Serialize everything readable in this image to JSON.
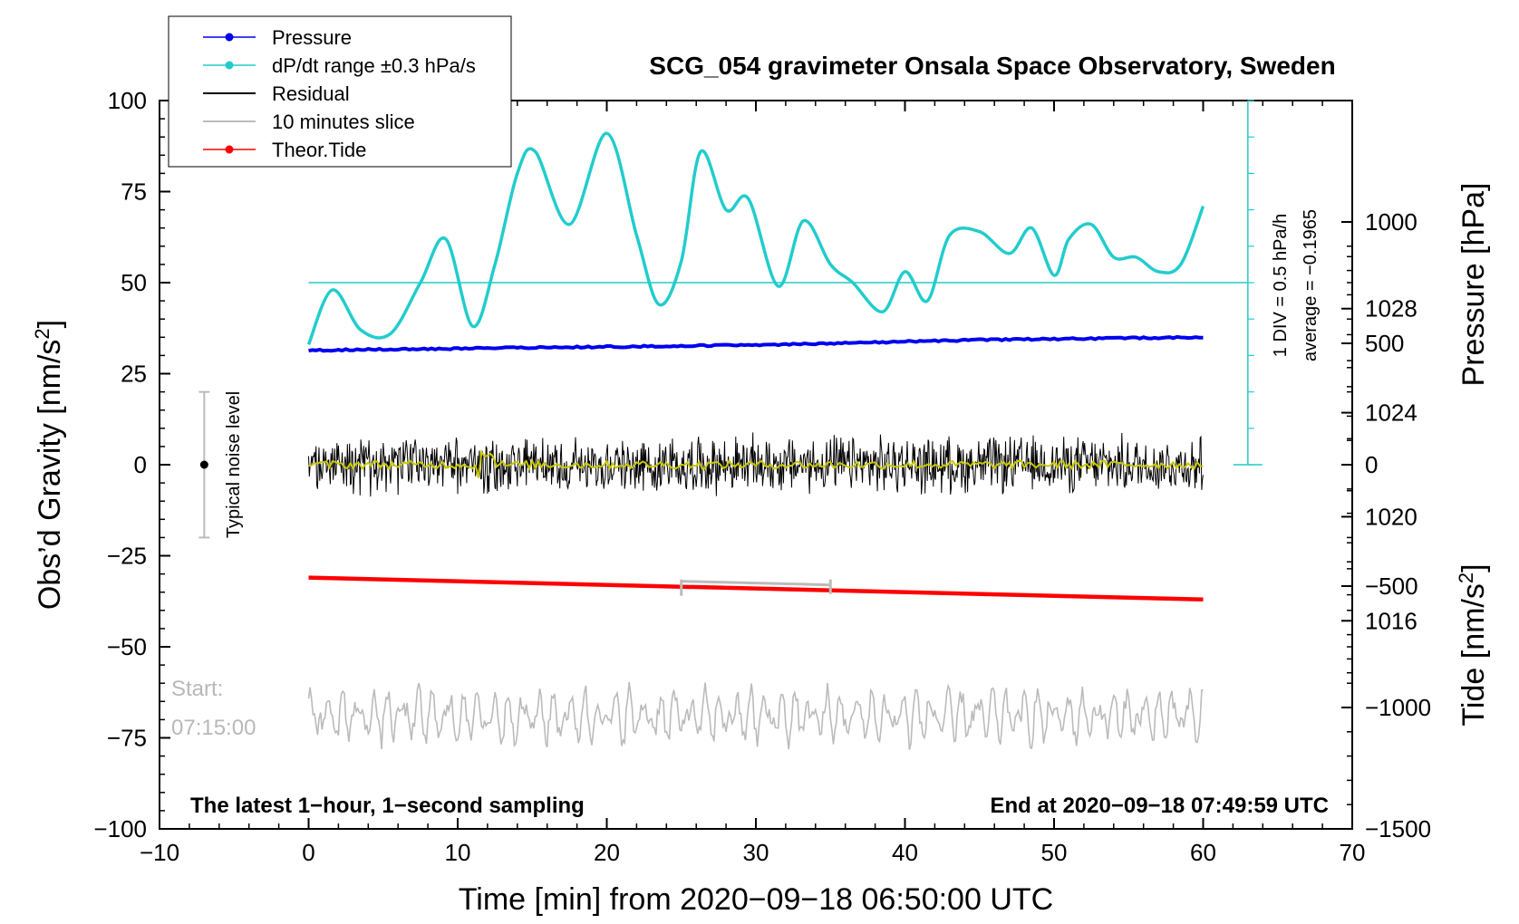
{
  "chart_data": {
    "type": "line",
    "title": "SCG_054 gravimeter Onsala Space Observatory, Sweden",
    "xlabel": "Time [min] from 2020−09−18 06:50:00 UTC",
    "ylabel_left": "Obs’d Gravity [nm/s²]",
    "ylabel_left_parts": {
      "main": "Obs’d Gravity [nm/s",
      "sup": "2",
      "end": "]"
    },
    "ylabel_pressure": "Pressure [hPa]",
    "ylabel_tide": "Tide [nm/s²]",
    "ylabel_tide_parts": {
      "main": "Tide [nm/s",
      "sup": "2",
      "end": "]"
    },
    "xlim": [
      -10,
      70
    ],
    "ylim_left": [
      -100,
      100
    ],
    "ylim_pressure": [
      1008,
      1036
    ],
    "ylim_tide": [
      -1500,
      1500
    ],
    "x_ticks": [
      -10,
      0,
      10,
      20,
      30,
      40,
      50,
      60,
      70
    ],
    "x_tick_labels": [
      "−10",
      "0",
      "10",
      "20",
      "30",
      "40",
      "50",
      "60",
      "70"
    ],
    "y_ticks_left": [
      100,
      75,
      50,
      25,
      0,
      -25,
      -50,
      -75,
      -100
    ],
    "y_tick_labels_left": [
      "100",
      "75",
      "50",
      "25",
      "0",
      "−25",
      "−50",
      "−75",
      "−100"
    ],
    "pressure_ticks": [
      1016,
      1020,
      1024,
      1028
    ],
    "pressure_tick_labels": [
      "1016",
      "1020",
      "1024",
      "1028"
    ],
    "tide_ticks": [
      1000,
      500,
      0,
      -500,
      -1000,
      -1500
    ],
    "tide_tick_labels": [
      "1000",
      "500",
      "0",
      "−500",
      "−1000",
      "−1500"
    ],
    "legend": [
      {
        "label": "Pressure",
        "color": "#0000ee",
        "marker": true
      },
      {
        "label": "dP/dt range ±0.3 hPa/s",
        "color": "#22cccc",
        "marker": true
      },
      {
        "label": "Residual",
        "color": "#000000",
        "marker": false
      },
      {
        "label": "10 minutes slice",
        "color": "#bbbbbb",
        "marker": false
      },
      {
        "label": "Theor.Tide",
        "color": "#ff0000",
        "marker": true
      }
    ],
    "pressure_hpa": {
      "x": [
        0,
        15,
        30,
        45,
        60
      ],
      "values": [
        1026.4,
        1026.5,
        1026.6,
        1026.8,
        1026.9
      ],
      "color": "#0000ee"
    },
    "dpdt": {
      "x": [
        0,
        1.6,
        3.5,
        5.5,
        7.5,
        9.2,
        11,
        12.5,
        14,
        15.2,
        17.5,
        20,
        22,
        23.5,
        25,
        26.3,
        28,
        29.5,
        31.5,
        33.2,
        35,
        36.5,
        38.5,
        40,
        41.5,
        43,
        45,
        47,
        48.5,
        50,
        51,
        52.5,
        54,
        55.5,
        57,
        58.5,
        60
      ],
      "values": [
        33,
        48,
        37,
        36,
        50,
        62,
        38,
        55,
        80,
        86,
        66,
        91,
        63,
        44,
        56,
        86,
        70,
        73,
        49,
        67,
        55,
        50,
        42,
        53,
        45,
        63,
        64,
        58,
        65,
        52,
        62,
        66,
        57,
        57,
        53,
        55,
        71
      ],
      "color": "#22cccc",
      "reference_level": 50
    },
    "residual": {
      "x_range": [
        0,
        60
      ],
      "amplitude": 9,
      "mean": 0,
      "color": "#000000"
    },
    "residual_smooth": {
      "x_range": [
        0,
        60
      ],
      "mean": 0,
      "color": "#c8c800"
    },
    "theoretical_tide": {
      "x": [
        0,
        60
      ],
      "values": [
        -31,
        -37
      ],
      "color": "#ff0000"
    },
    "ten_minute_slice": {
      "x_range": [
        0,
        60
      ],
      "mean": -69,
      "amplitude": 8,
      "color": "#bbbbbb"
    },
    "slice_marker_x": [
      25,
      35
    ],
    "noise_level": {
      "x": -7,
      "center": 0,
      "range": [
        -20,
        20
      ],
      "label": "Typical noise level"
    },
    "scale_bar": {
      "x": 63,
      "top": 100,
      "bottom": 0,
      "labels": [
        "1 DIV = 0.5 hPa/h",
        "average = −0.1965"
      ]
    },
    "annotations": {
      "bottom_left": "The latest 1−hour, 1−second sampling",
      "bottom_right": "End at 2020−09−18 07:49:59 UTC",
      "start_label": "Start:",
      "start_time": "07:15:00"
    }
  }
}
